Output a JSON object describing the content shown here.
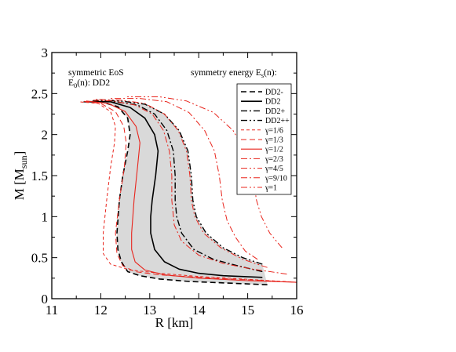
{
  "chart_data": {
    "type": "line",
    "xlabel": "R [km]",
    "ylabel": "M [M_sun]",
    "ylabel_main": "M [M",
    "ylabel_sub": "sun",
    "ylabel_close": "]",
    "xlim": [
      11,
      16
    ],
    "ylim": [
      0,
      3
    ],
    "xticks": [
      "11",
      "12",
      "13",
      "14",
      "15",
      "16"
    ],
    "yticks": [
      "0",
      "0.5",
      "1",
      "1.5",
      "2",
      "2.5",
      "3"
    ],
    "annotation_left": {
      "line1": "symmetric EoS",
      "line2_main": "E",
      "line2_sub": "0",
      "line2_rest": "(n): DD2"
    },
    "annotation_right": {
      "main": "symmetry energy E",
      "sub": "s",
      "rest": "(n):"
    },
    "legend_position": "top-right",
    "shaded_band": {
      "between": [
        "DD2-",
        "DD2++"
      ],
      "color": "#d9d9d9"
    },
    "series": [
      {
        "name": "DD2-",
        "color": "#000000",
        "dash": "7,4",
        "width": 1.6,
        "points": [
          [
            15.4,
            0.17
          ],
          [
            14.6,
            0.19
          ],
          [
            13.8,
            0.21
          ],
          [
            13.2,
            0.24
          ],
          [
            12.8,
            0.28
          ],
          [
            12.55,
            0.33
          ],
          [
            12.42,
            0.45
          ],
          [
            12.35,
            0.6
          ],
          [
            12.33,
            0.8
          ],
          [
            12.38,
            1.2
          ],
          [
            12.45,
            1.5
          ],
          [
            12.55,
            1.8
          ],
          [
            12.6,
            2.0
          ],
          [
            12.55,
            2.2
          ],
          [
            12.35,
            2.34
          ],
          [
            12.0,
            2.4
          ],
          [
            11.65,
            2.4
          ]
        ]
      },
      {
        "name": "DD2",
        "color": "#000000",
        "dash": "",
        "width": 1.6,
        "points": [
          [
            15.3,
            0.26
          ],
          [
            14.5,
            0.28
          ],
          [
            14.0,
            0.31
          ],
          [
            13.6,
            0.36
          ],
          [
            13.3,
            0.45
          ],
          [
            13.1,
            0.6
          ],
          [
            13.02,
            0.8
          ],
          [
            13.02,
            1.0
          ],
          [
            13.05,
            1.2
          ],
          [
            13.12,
            1.5
          ],
          [
            13.17,
            1.8
          ],
          [
            13.1,
            2.0
          ],
          [
            12.9,
            2.2
          ],
          [
            12.6,
            2.33
          ],
          [
            12.2,
            2.4
          ],
          [
            11.75,
            2.4
          ]
        ]
      },
      {
        "name": "DD2+",
        "color": "#000000",
        "dash": "8,3,2,3",
        "width": 1.4,
        "points": [
          [
            15.3,
            0.33
          ],
          [
            14.8,
            0.4
          ],
          [
            14.3,
            0.48
          ],
          [
            13.9,
            0.6
          ],
          [
            13.65,
            0.8
          ],
          [
            13.55,
            1.0
          ],
          [
            13.52,
            1.2
          ],
          [
            13.52,
            1.5
          ],
          [
            13.48,
            1.8
          ],
          [
            13.35,
            2.05
          ],
          [
            13.1,
            2.25
          ],
          [
            12.75,
            2.36
          ],
          [
            12.3,
            2.4
          ],
          [
            11.8,
            2.41
          ]
        ]
      },
      {
        "name": "DD2++",
        "color": "#000000",
        "dash": "8,3,2,3,2,3",
        "width": 1.4,
        "points": [
          [
            15.3,
            0.42
          ],
          [
            14.9,
            0.5
          ],
          [
            14.5,
            0.62
          ],
          [
            14.15,
            0.8
          ],
          [
            13.95,
            1.0
          ],
          [
            13.88,
            1.2
          ],
          [
            13.85,
            1.5
          ],
          [
            13.78,
            1.8
          ],
          [
            13.6,
            2.05
          ],
          [
            13.3,
            2.25
          ],
          [
            12.9,
            2.37
          ],
          [
            12.4,
            2.41
          ],
          [
            11.9,
            2.42
          ]
        ]
      },
      {
        "name": "γ=1/6",
        "color": "#e8241c",
        "dash": "4,3",
        "width": 1.0,
        "points": [
          [
            16.0,
            0.2
          ],
          [
            14.9,
            0.24
          ],
          [
            14.0,
            0.27
          ],
          [
            13.2,
            0.31
          ],
          [
            12.6,
            0.35
          ],
          [
            12.2,
            0.42
          ],
          [
            12.05,
            0.55
          ],
          [
            12.05,
            0.8
          ],
          [
            12.12,
            1.2
          ],
          [
            12.2,
            1.6
          ],
          [
            12.28,
            1.9
          ],
          [
            12.3,
            2.1
          ],
          [
            12.2,
            2.28
          ],
          [
            11.95,
            2.38
          ],
          [
            11.55,
            2.4
          ]
        ]
      },
      {
        "name": "γ=1/3",
        "color": "#e8241c",
        "dash": "7,4",
        "width": 1.0,
        "points": [
          [
            16.0,
            0.2
          ],
          [
            15.0,
            0.23
          ],
          [
            14.0,
            0.26
          ],
          [
            13.2,
            0.29
          ],
          [
            12.7,
            0.33
          ],
          [
            12.45,
            0.4
          ],
          [
            12.33,
            0.55
          ],
          [
            12.3,
            0.8
          ],
          [
            12.38,
            1.2
          ],
          [
            12.48,
            1.6
          ],
          [
            12.52,
            1.9
          ],
          [
            12.47,
            2.1
          ],
          [
            12.3,
            2.28
          ],
          [
            12.0,
            2.38
          ],
          [
            11.6,
            2.41
          ]
        ]
      },
      {
        "name": "γ=1/2",
        "color": "#e8241c",
        "dash": "",
        "width": 1.1,
        "points": [
          [
            16.0,
            0.2
          ],
          [
            15.0,
            0.22
          ],
          [
            14.0,
            0.25
          ],
          [
            13.3,
            0.29
          ],
          [
            12.9,
            0.35
          ],
          [
            12.7,
            0.45
          ],
          [
            12.63,
            0.6
          ],
          [
            12.63,
            0.8
          ],
          [
            12.68,
            1.2
          ],
          [
            12.75,
            1.6
          ],
          [
            12.8,
            1.9
          ],
          [
            12.72,
            2.1
          ],
          [
            12.5,
            2.28
          ],
          [
            12.15,
            2.38
          ],
          [
            11.7,
            2.41
          ]
        ]
      },
      {
        "name": "γ=2/3",
        "color": "#e8241c",
        "dash": "8,3,2,3",
        "width": 1.0,
        "points": [
          [
            15.8,
            0.3
          ],
          [
            15.1,
            0.36
          ],
          [
            14.5,
            0.43
          ],
          [
            14.0,
            0.53
          ],
          [
            13.65,
            0.7
          ],
          [
            13.5,
            0.9
          ],
          [
            13.45,
            1.2
          ],
          [
            13.45,
            1.5
          ],
          [
            13.4,
            1.8
          ],
          [
            13.28,
            2.05
          ],
          [
            13.05,
            2.25
          ],
          [
            12.7,
            2.36
          ],
          [
            12.25,
            2.41
          ],
          [
            11.8,
            2.42
          ]
        ]
      },
      {
        "name": "γ=4/5",
        "color": "#e8241c",
        "dash": "8,3,2,3,2,3",
        "width": 1.0,
        "points": [
          [
            15.4,
            0.38
          ],
          [
            14.9,
            0.48
          ],
          [
            14.45,
            0.62
          ],
          [
            14.1,
            0.8
          ],
          [
            13.92,
            1.0
          ],
          [
            13.85,
            1.2
          ],
          [
            13.82,
            1.5
          ],
          [
            13.75,
            1.8
          ],
          [
            13.58,
            2.05
          ],
          [
            13.3,
            2.25
          ],
          [
            12.9,
            2.38
          ],
          [
            12.4,
            2.42
          ],
          [
            11.9,
            2.43
          ]
        ]
      },
      {
        "name": "γ=9/10",
        "color": "#e8241c",
        "dash": "8,3,2,3",
        "width": 1.0,
        "points": [
          [
            15.2,
            0.48
          ],
          [
            14.95,
            0.58
          ],
          [
            14.75,
            0.75
          ],
          [
            14.58,
            0.95
          ],
          [
            14.48,
            1.2
          ],
          [
            14.42,
            1.5
          ],
          [
            14.32,
            1.8
          ],
          [
            14.12,
            2.05
          ],
          [
            13.8,
            2.27
          ],
          [
            13.35,
            2.4
          ],
          [
            12.8,
            2.44
          ],
          [
            12.2,
            2.44
          ]
        ]
      },
      {
        "name": "γ=1",
        "color": "#e8241c",
        "dash": "8,3,2,3,2,3",
        "width": 1.0,
        "points": [
          [
            15.7,
            0.62
          ],
          [
            15.45,
            0.8
          ],
          [
            15.28,
            1.0
          ],
          [
            15.18,
            1.2
          ],
          [
            15.1,
            1.5
          ],
          [
            14.95,
            1.8
          ],
          [
            14.7,
            2.05
          ],
          [
            14.3,
            2.27
          ],
          [
            13.75,
            2.41
          ],
          [
            13.2,
            2.46
          ],
          [
            12.5,
            2.46
          ]
        ]
      }
    ]
  }
}
